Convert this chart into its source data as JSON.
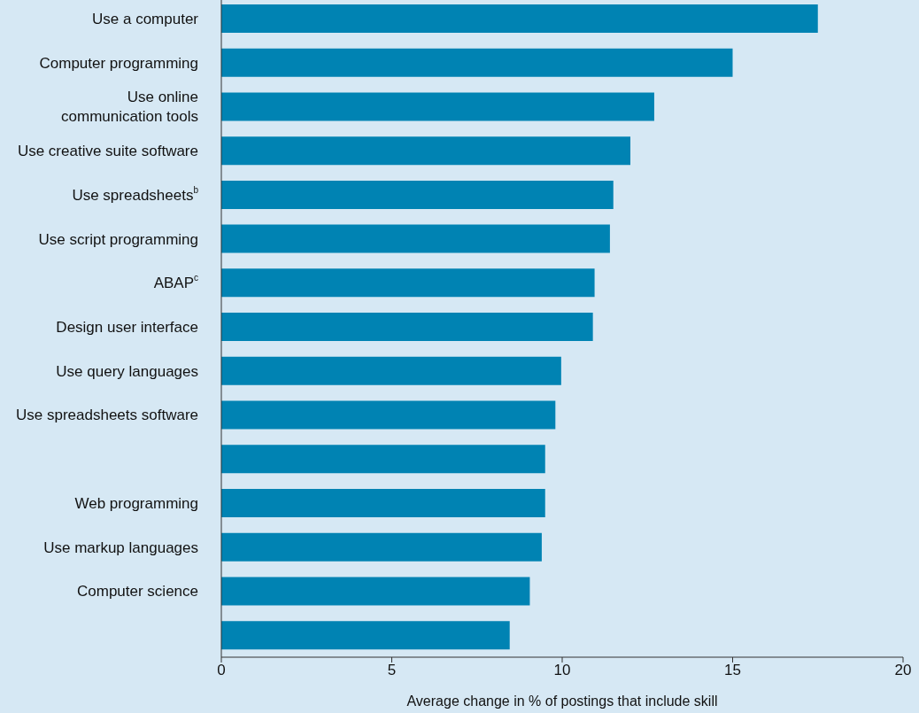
{
  "chart_data": {
    "type": "bar",
    "orientation": "horizontal",
    "xlabel": "Average change in % of postings that include skill",
    "categories": [
      "Use a computer",
      "Computer programming",
      "Use online\ncommunication tools",
      "Use creative suite software",
      "Use spreadsheets$^{b}$",
      "Use script programming",
      "ABAP$^{c}$",
      "Design user interface",
      "Use query languages",
      "Use spreadsheets software",
      null,
      "Web programming",
      "Use markup languages",
      "Computer science",
      null
    ],
    "values": [
      17.5,
      15.0,
      12.7,
      12.0,
      11.5,
      11.4,
      10.95,
      10.9,
      9.97,
      9.8,
      9.5,
      9.5,
      9.4,
      9.05,
      8.46
    ],
    "color": "#0083b3",
    "xlim": [
      0,
      20
    ],
    "xticks": [
      0,
      5,
      10,
      15,
      20
    ],
    "grid": false
  }
}
